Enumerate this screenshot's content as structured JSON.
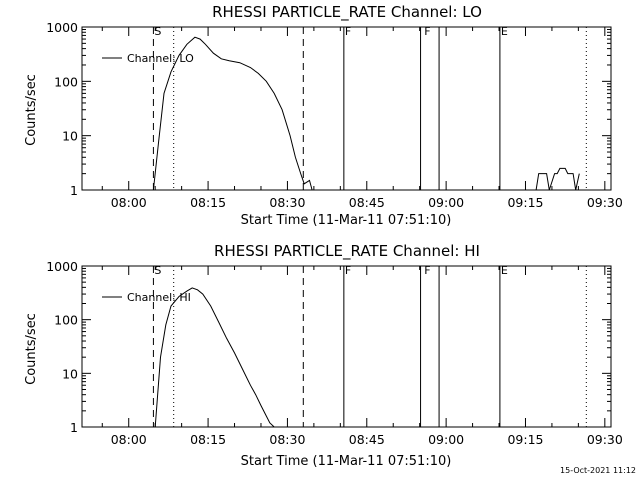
{
  "timestamp": "15-Oct-2021 11:12",
  "chart_data": [
    {
      "type": "line",
      "title": "RHESSI PARTICLE_RATE Channel: LO",
      "xlabel": "Start Time (11-Mar-11 07:51:10)",
      "ylabel": "Counts/sec",
      "yscale": "log",
      "ylim": [
        1,
        1000
      ],
      "xlim": [
        "07:51:10",
        "09:31:10"
      ],
      "x_ticks": [
        "08:00",
        "08:15",
        "08:30",
        "08:45",
        "09:00",
        "09:15",
        "09:30"
      ],
      "y_ticks": [
        "1",
        "10",
        "100",
        "1000"
      ],
      "legend": {
        "label": "Channel: LO",
        "position": "top-left"
      },
      "flags": [
        {
          "label": "S",
          "time": "08:04:40"
        },
        {
          "label": "F",
          "time": "08:40:40"
        },
        {
          "label": "F",
          "time": "08:55:40"
        },
        {
          "label": "E",
          "time": "09:10:10"
        }
      ],
      "dashed_lines": [
        "08:04:40",
        "08:33:00"
      ],
      "dotted_lines": [
        "08:08:30",
        "09:26:30"
      ],
      "solid_lines": [
        "08:40:40",
        "08:55:10",
        "08:58:40",
        "09:10:10"
      ],
      "series": [
        {
          "name": "Channel: LO",
          "x": [
            "08:04:40",
            "08:05:40",
            "08:06:40",
            "08:08:00",
            "08:09:30",
            "08:11:00",
            "08:12:30",
            "08:13:30",
            "08:14:30",
            "08:16:00",
            "08:17:30",
            "08:19:00",
            "08:21:00",
            "08:23:00",
            "08:24:30",
            "08:26:00",
            "08:27:30",
            "08:29:00",
            "08:30:30",
            "08:31:30",
            "08:32:30",
            "08:33:10",
            "08:34:10",
            "08:34:40"
          ],
          "y": [
            1,
            8,
            60,
            150,
            300,
            480,
            650,
            600,
            480,
            330,
            260,
            240,
            220,
            180,
            140,
            100,
            60,
            30,
            10,
            4,
            2,
            1.3,
            1.5,
            1
          ]
        },
        {
          "name": "Channel: LO",
          "x": [
            "09:17:00",
            "09:17:30",
            "09:19:00",
            "09:19:30",
            "09:20:30",
            "09:21:00",
            "09:21:30",
            "09:22:30",
            "09:23:00",
            "09:24:00",
            "09:24:30",
            "09:25:10"
          ],
          "y": [
            1,
            2,
            2,
            1,
            2,
            2,
            2.5,
            2.5,
            2,
            2,
            1,
            2
          ]
        }
      ]
    },
    {
      "type": "line",
      "title": "RHESSI PARTICLE_RATE Channel: HI",
      "xlabel": "Start Time (11-Mar-11 07:51:10)",
      "ylabel": "Counts/sec",
      "yscale": "log",
      "ylim": [
        1,
        1000
      ],
      "xlim": [
        "07:51:10",
        "09:31:10"
      ],
      "x_ticks": [
        "08:00",
        "08:15",
        "08:30",
        "08:45",
        "09:00",
        "09:15",
        "09:30"
      ],
      "y_ticks": [
        "1",
        "10",
        "100",
        "1000"
      ],
      "legend": {
        "label": "Channel: HI",
        "position": "top-left"
      },
      "flags": [
        {
          "label": "S",
          "time": "08:04:40"
        },
        {
          "label": "F",
          "time": "08:40:40"
        },
        {
          "label": "F",
          "time": "08:55:40"
        },
        {
          "label": "E",
          "time": "09:10:10"
        }
      ],
      "dashed_lines": [
        "08:04:40",
        "08:33:00"
      ],
      "dotted_lines": [
        "08:08:30",
        "09:26:30"
      ],
      "solid_lines": [
        "08:40:40",
        "08:55:10",
        "08:58:40",
        "09:10:10"
      ],
      "series": [
        {
          "name": "Channel: HI",
          "x": [
            "08:05:00",
            "08:06:00",
            "08:07:00",
            "08:08:00",
            "08:09:30",
            "08:11:00",
            "08:12:00",
            "08:13:00",
            "08:14:00",
            "08:15:30",
            "08:17:00",
            "08:18:30",
            "08:20:00",
            "08:21:30",
            "08:23:00",
            "08:24:00",
            "08:25:00",
            "08:26:00",
            "08:26:40",
            "08:27:30"
          ],
          "y": [
            1,
            20,
            80,
            180,
            270,
            340,
            390,
            360,
            300,
            180,
            90,
            45,
            24,
            12,
            6,
            4,
            2.5,
            1.6,
            1.2,
            1
          ]
        }
      ]
    }
  ]
}
